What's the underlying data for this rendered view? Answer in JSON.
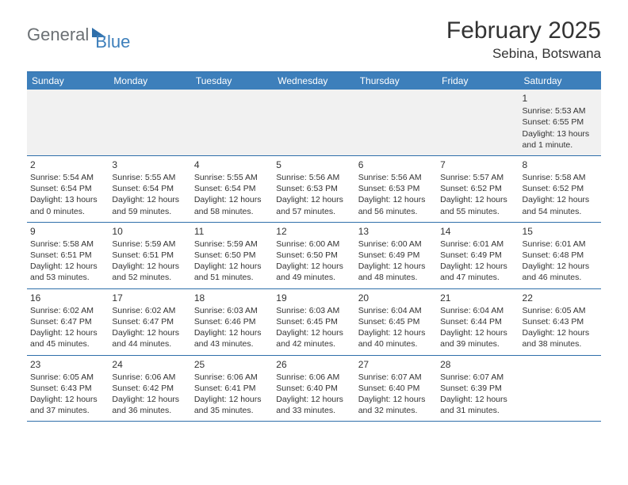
{
  "brand": {
    "part1": "General",
    "part2": "Blue"
  },
  "title": {
    "month": "February 2025",
    "location": "Sebina, Botswana"
  },
  "colors": {
    "header_bg": "#3d7fbb",
    "header_text": "#ffffff",
    "border": "#2f6faa",
    "firstrow_bg": "#f1f1f1",
    "text": "#333333"
  },
  "dayHeaders": [
    "Sunday",
    "Monday",
    "Tuesday",
    "Wednesday",
    "Thursday",
    "Friday",
    "Saturday"
  ],
  "weeks": [
    [
      null,
      null,
      null,
      null,
      null,
      null,
      {
        "n": "1",
        "sr": "Sunrise: 5:53 AM",
        "ss": "Sunset: 6:55 PM",
        "d1": "Daylight: 13 hours",
        "d2": "and 1 minute."
      }
    ],
    [
      {
        "n": "2",
        "sr": "Sunrise: 5:54 AM",
        "ss": "Sunset: 6:54 PM",
        "d1": "Daylight: 13 hours",
        "d2": "and 0 minutes."
      },
      {
        "n": "3",
        "sr": "Sunrise: 5:55 AM",
        "ss": "Sunset: 6:54 PM",
        "d1": "Daylight: 12 hours",
        "d2": "and 59 minutes."
      },
      {
        "n": "4",
        "sr": "Sunrise: 5:55 AM",
        "ss": "Sunset: 6:54 PM",
        "d1": "Daylight: 12 hours",
        "d2": "and 58 minutes."
      },
      {
        "n": "5",
        "sr": "Sunrise: 5:56 AM",
        "ss": "Sunset: 6:53 PM",
        "d1": "Daylight: 12 hours",
        "d2": "and 57 minutes."
      },
      {
        "n": "6",
        "sr": "Sunrise: 5:56 AM",
        "ss": "Sunset: 6:53 PM",
        "d1": "Daylight: 12 hours",
        "d2": "and 56 minutes."
      },
      {
        "n": "7",
        "sr": "Sunrise: 5:57 AM",
        "ss": "Sunset: 6:52 PM",
        "d1": "Daylight: 12 hours",
        "d2": "and 55 minutes."
      },
      {
        "n": "8",
        "sr": "Sunrise: 5:58 AM",
        "ss": "Sunset: 6:52 PM",
        "d1": "Daylight: 12 hours",
        "d2": "and 54 minutes."
      }
    ],
    [
      {
        "n": "9",
        "sr": "Sunrise: 5:58 AM",
        "ss": "Sunset: 6:51 PM",
        "d1": "Daylight: 12 hours",
        "d2": "and 53 minutes."
      },
      {
        "n": "10",
        "sr": "Sunrise: 5:59 AM",
        "ss": "Sunset: 6:51 PM",
        "d1": "Daylight: 12 hours",
        "d2": "and 52 minutes."
      },
      {
        "n": "11",
        "sr": "Sunrise: 5:59 AM",
        "ss": "Sunset: 6:50 PM",
        "d1": "Daylight: 12 hours",
        "d2": "and 51 minutes."
      },
      {
        "n": "12",
        "sr": "Sunrise: 6:00 AM",
        "ss": "Sunset: 6:50 PM",
        "d1": "Daylight: 12 hours",
        "d2": "and 49 minutes."
      },
      {
        "n": "13",
        "sr": "Sunrise: 6:00 AM",
        "ss": "Sunset: 6:49 PM",
        "d1": "Daylight: 12 hours",
        "d2": "and 48 minutes."
      },
      {
        "n": "14",
        "sr": "Sunrise: 6:01 AM",
        "ss": "Sunset: 6:49 PM",
        "d1": "Daylight: 12 hours",
        "d2": "and 47 minutes."
      },
      {
        "n": "15",
        "sr": "Sunrise: 6:01 AM",
        "ss": "Sunset: 6:48 PM",
        "d1": "Daylight: 12 hours",
        "d2": "and 46 minutes."
      }
    ],
    [
      {
        "n": "16",
        "sr": "Sunrise: 6:02 AM",
        "ss": "Sunset: 6:47 PM",
        "d1": "Daylight: 12 hours",
        "d2": "and 45 minutes."
      },
      {
        "n": "17",
        "sr": "Sunrise: 6:02 AM",
        "ss": "Sunset: 6:47 PM",
        "d1": "Daylight: 12 hours",
        "d2": "and 44 minutes."
      },
      {
        "n": "18",
        "sr": "Sunrise: 6:03 AM",
        "ss": "Sunset: 6:46 PM",
        "d1": "Daylight: 12 hours",
        "d2": "and 43 minutes."
      },
      {
        "n": "19",
        "sr": "Sunrise: 6:03 AM",
        "ss": "Sunset: 6:45 PM",
        "d1": "Daylight: 12 hours",
        "d2": "and 42 minutes."
      },
      {
        "n": "20",
        "sr": "Sunrise: 6:04 AM",
        "ss": "Sunset: 6:45 PM",
        "d1": "Daylight: 12 hours",
        "d2": "and 40 minutes."
      },
      {
        "n": "21",
        "sr": "Sunrise: 6:04 AM",
        "ss": "Sunset: 6:44 PM",
        "d1": "Daylight: 12 hours",
        "d2": "and 39 minutes."
      },
      {
        "n": "22",
        "sr": "Sunrise: 6:05 AM",
        "ss": "Sunset: 6:43 PM",
        "d1": "Daylight: 12 hours",
        "d2": "and 38 minutes."
      }
    ],
    [
      {
        "n": "23",
        "sr": "Sunrise: 6:05 AM",
        "ss": "Sunset: 6:43 PM",
        "d1": "Daylight: 12 hours",
        "d2": "and 37 minutes."
      },
      {
        "n": "24",
        "sr": "Sunrise: 6:06 AM",
        "ss": "Sunset: 6:42 PM",
        "d1": "Daylight: 12 hours",
        "d2": "and 36 minutes."
      },
      {
        "n": "25",
        "sr": "Sunrise: 6:06 AM",
        "ss": "Sunset: 6:41 PM",
        "d1": "Daylight: 12 hours",
        "d2": "and 35 minutes."
      },
      {
        "n": "26",
        "sr": "Sunrise: 6:06 AM",
        "ss": "Sunset: 6:40 PM",
        "d1": "Daylight: 12 hours",
        "d2": "and 33 minutes."
      },
      {
        "n": "27",
        "sr": "Sunrise: 6:07 AM",
        "ss": "Sunset: 6:40 PM",
        "d1": "Daylight: 12 hours",
        "d2": "and 32 minutes."
      },
      {
        "n": "28",
        "sr": "Sunrise: 6:07 AM",
        "ss": "Sunset: 6:39 PM",
        "d1": "Daylight: 12 hours",
        "d2": "and 31 minutes."
      },
      null
    ]
  ]
}
